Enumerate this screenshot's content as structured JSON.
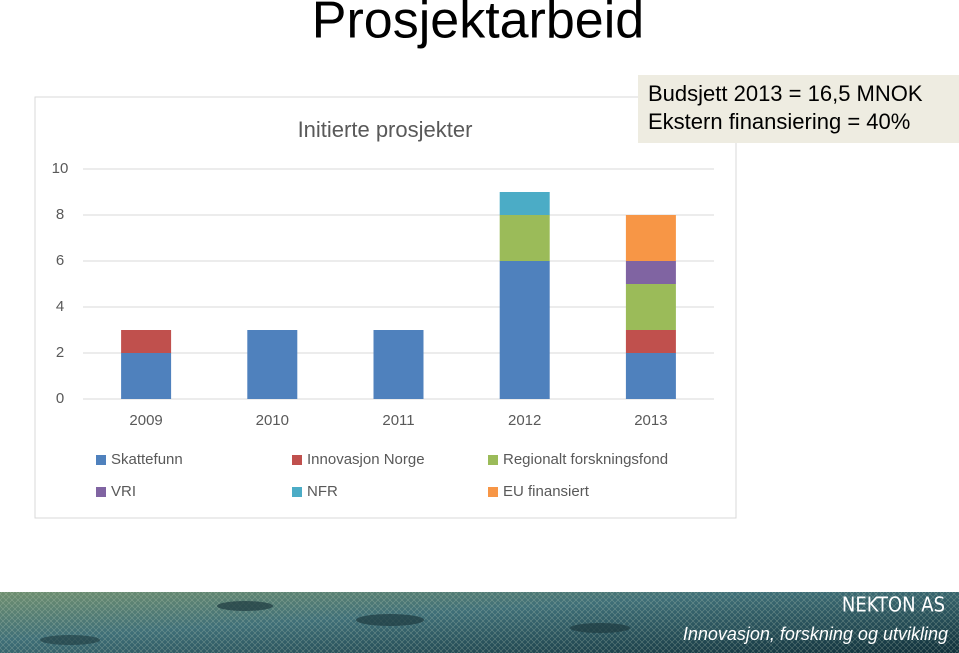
{
  "slide": {
    "title": "Prosjektarbeid",
    "note": [
      "Budsjett 2013 = 16,5 MNOK",
      "Ekstern finansiering = 40%"
    ],
    "footer": {
      "company": "NEKTON AS",
      "tagline": "Innovasjon, forskning og utvikling"
    }
  },
  "chart_data": {
    "type": "stacked_bar",
    "title": "Initierte prosjekter",
    "categories": [
      "2009",
      "2010",
      "2011",
      "2012",
      "2013"
    ],
    "series": [
      {
        "name": "Skattefunn",
        "color": "#4f81bd",
        "values": [
          2,
          3,
          3,
          6,
          2
        ]
      },
      {
        "name": "Innovasjon Norge",
        "color": "#c0504d",
        "values": [
          1,
          0,
          0,
          0,
          1
        ]
      },
      {
        "name": "Regionalt forskningsfond",
        "color": "#9bbb59",
        "values": [
          0,
          0,
          0,
          2,
          2
        ]
      },
      {
        "name": "VRI",
        "color": "#8064a2",
        "values": [
          0,
          0,
          0,
          0,
          1
        ]
      },
      {
        "name": "NFR",
        "color": "#4bacc6",
        "values": [
          0,
          0,
          0,
          1,
          0
        ]
      },
      {
        "name": "EU finansiert",
        "color": "#f79646",
        "values": [
          0,
          0,
          0,
          0,
          2
        ]
      }
    ],
    "ylim": [
      0,
      10
    ],
    "yticks": [
      0,
      2,
      4,
      6,
      8,
      10
    ],
    "grid": true,
    "legend": "bottom"
  }
}
